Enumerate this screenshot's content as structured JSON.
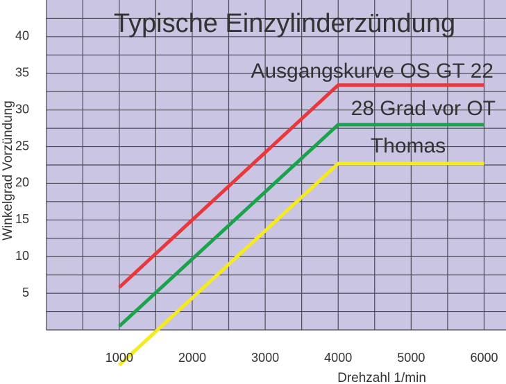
{
  "chart_data": {
    "type": "line",
    "title": "Typische Einzylinderzündung",
    "x_label": "Drehzahl 1/min",
    "y_label": "Winkelgrad Vorzündung",
    "series": [
      {
        "name": "Ausgangskurve OS GT 22",
        "color": "#e8383d",
        "x": [
          1000,
          4000,
          6000
        ],
        "values": [
          5.8,
          33.4,
          33.4
        ]
      },
      {
        "name": "28 Grad vor OT",
        "color": "#1aa34a",
        "x": [
          1000,
          4000,
          6000
        ],
        "values": [
          0.5,
          28,
          28
        ]
      },
      {
        "name": "Thomas",
        "color": "#f5ea1e",
        "x": [
          1000,
          4000,
          6000
        ],
        "values": [
          -4.8,
          22.7,
          22.7
        ]
      }
    ],
    "xlim": [
      0,
      6300
    ],
    "ylim": [
      0,
      45
    ],
    "xticks": [
      1000,
      2000,
      3000,
      4000,
      5000,
      6000
    ],
    "yticks": [
      5,
      10,
      15,
      20,
      25,
      30,
      35,
      40
    ],
    "xgrid": [
      0,
      500,
      1000,
      1500,
      2000,
      2500,
      3000,
      3500,
      4000,
      4500,
      5000,
      5500,
      6000
    ],
    "ygrid": [
      0,
      2.5,
      5,
      7.5,
      10,
      12.5,
      15,
      17.5,
      20,
      22.5,
      25,
      27.5,
      30,
      32.5,
      35,
      37.5,
      40,
      42.5
    ],
    "background": "#c9c5e2",
    "grid_color": "#4a4a55"
  }
}
